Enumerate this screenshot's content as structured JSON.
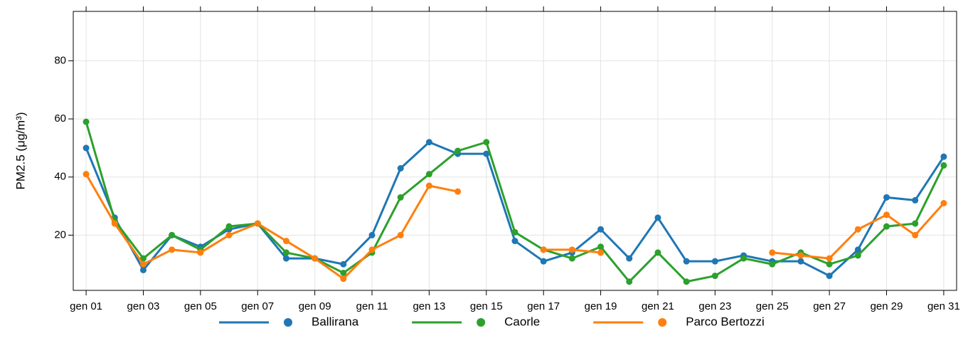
{
  "chart_data": {
    "type": "line",
    "y_label": "PM2.5 (μg/m³)",
    "categories": [
      "gen 01",
      null,
      "gen 03",
      null,
      "gen 05",
      null,
      "gen 07",
      null,
      "gen 09",
      null,
      "gen 11",
      null,
      "gen 13",
      null,
      "gen 15",
      null,
      "gen 17",
      null,
      "gen 19",
      null,
      "gen 21",
      null,
      "gen 23",
      null,
      "gen 25",
      null,
      "gen 27",
      null,
      "gen 29",
      null,
      "gen 31"
    ],
    "series": [
      {
        "name": "Ballirana",
        "color": "#1f77b4",
        "values": [
          50,
          26,
          8,
          20,
          16,
          22,
          24,
          12,
          12,
          10,
          20,
          43,
          52,
          48,
          48,
          18,
          11,
          14,
          22,
          12,
          26,
          11,
          11,
          13,
          11,
          11,
          6,
          15,
          33,
          32,
          47
        ]
      },
      {
        "name": "Caorle",
        "color": "#2ca02c",
        "values": [
          59,
          25,
          12,
          20,
          15,
          23,
          24,
          14,
          12,
          7,
          14,
          33,
          41,
          49,
          52,
          21,
          15,
          12,
          16,
          4,
          14,
          4,
          6,
          12,
          10,
          14,
          10,
          13,
          23,
          24,
          44
        ]
      },
      {
        "name": "Parco Bertozzi",
        "color": "#ff7f0e",
        "values": [
          41,
          24,
          10,
          15,
          14,
          20,
          24,
          18,
          12,
          5,
          15,
          20,
          37,
          35,
          null,
          null,
          15,
          15,
          14,
          null,
          null,
          null,
          null,
          null,
          14,
          13,
          12,
          22,
          27,
          20,
          31
        ]
      }
    ],
    "ylim": [
      1,
      97
    ],
    "yticks": [
      20,
      40,
      60,
      80
    ],
    "grid": true,
    "legend": "bottom"
  }
}
